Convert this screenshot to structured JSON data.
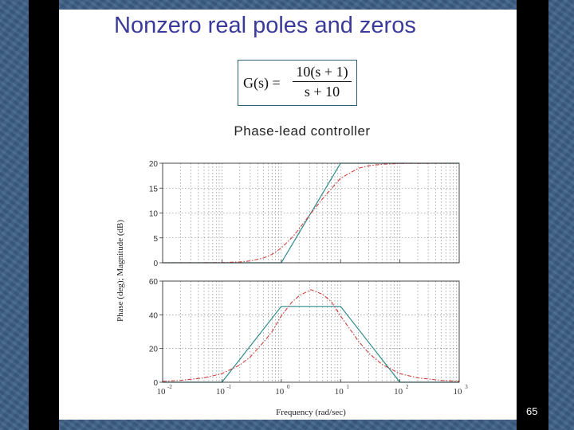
{
  "slide": {
    "title": "Nonzero real poles and zeros",
    "number": "65"
  },
  "formula": {
    "lhs": "G(s) =",
    "numerator": "10(s + 1)",
    "denominator": "s + 10"
  },
  "chart_data": {
    "type": "line",
    "title": "Phase-lead controller",
    "xlabel": "Frequency (rad/sec)",
    "ylabel": "Phase (deg); Magnitude (dB)",
    "xscale": "log",
    "xlim": [
      0.01,
      1000
    ],
    "xtick_labels": [
      {
        "base": "10",
        "exp": "-2",
        "value": 0.01
      },
      {
        "base": "10",
        "exp": "-1",
        "value": 0.1
      },
      {
        "base": "10",
        "exp": "0",
        "value": 1
      },
      {
        "base": "10",
        "exp": "1",
        "value": 10
      },
      {
        "base": "10",
        "exp": "2",
        "value": 100
      },
      {
        "base": "10",
        "exp": "3",
        "value": 1000
      }
    ],
    "grid": true,
    "panels": [
      {
        "name": "magnitude",
        "ylim": [
          0,
          20
        ],
        "yticks": [
          "0",
          "5",
          "10",
          "15",
          "20"
        ],
        "ytick_values": [
          0,
          5,
          10,
          15,
          20
        ],
        "series": [
          {
            "style": "asymptote",
            "color": "#2e8b8b",
            "x": [
              0.01,
              1,
              10,
              1000
            ],
            "y": [
              0,
              0,
              20,
              20
            ]
          },
          {
            "style": "exact",
            "color": "#d04040",
            "x": [
              0.01,
              0.1,
              0.2,
              0.3,
              0.5,
              0.7,
              1,
              1.5,
              2,
              3,
              5,
              7,
              10,
              20,
              30,
              50,
              100,
              1000
            ],
            "y": [
              0,
              0.04,
              0.17,
              0.37,
              0.96,
              1.7,
              2.97,
              5.0,
              6.8,
              9.6,
              12.9,
              14.9,
              17.0,
              19.0,
              19.5,
              19.8,
              19.96,
              20
            ]
          }
        ]
      },
      {
        "name": "phase",
        "ylim": [
          0,
          60
        ],
        "yticks": [
          "0",
          "20",
          "40",
          "60"
        ],
        "ytick_values": [
          0,
          20,
          40,
          60
        ],
        "series": [
          {
            "style": "asymptote",
            "color": "#2e8b8b",
            "x": [
              0.01,
              0.1,
              1,
              10,
              100,
              1000
            ],
            "y": [
              0,
              0,
              45,
              45,
              0,
              0
            ]
          },
          {
            "style": "exact",
            "color": "#d04040",
            "x": [
              0.01,
              0.02,
              0.05,
              0.1,
              0.2,
              0.3,
              0.5,
              0.7,
              1,
              1.5,
              2,
              3.162,
              5,
              7,
              10,
              20,
              30,
              50,
              100,
              200,
              500,
              1000
            ],
            "y": [
              0.5,
              1.1,
              2.6,
              5.1,
              10.2,
              15.0,
              23.7,
              30.0,
              39.3,
              47.4,
              51.3,
              54.9,
              52.1,
              47.7,
              39.3,
              24.4,
              17.2,
              10.6,
              5.1,
              2.6,
              1.1,
              0.5
            ]
          }
        ]
      }
    ]
  }
}
